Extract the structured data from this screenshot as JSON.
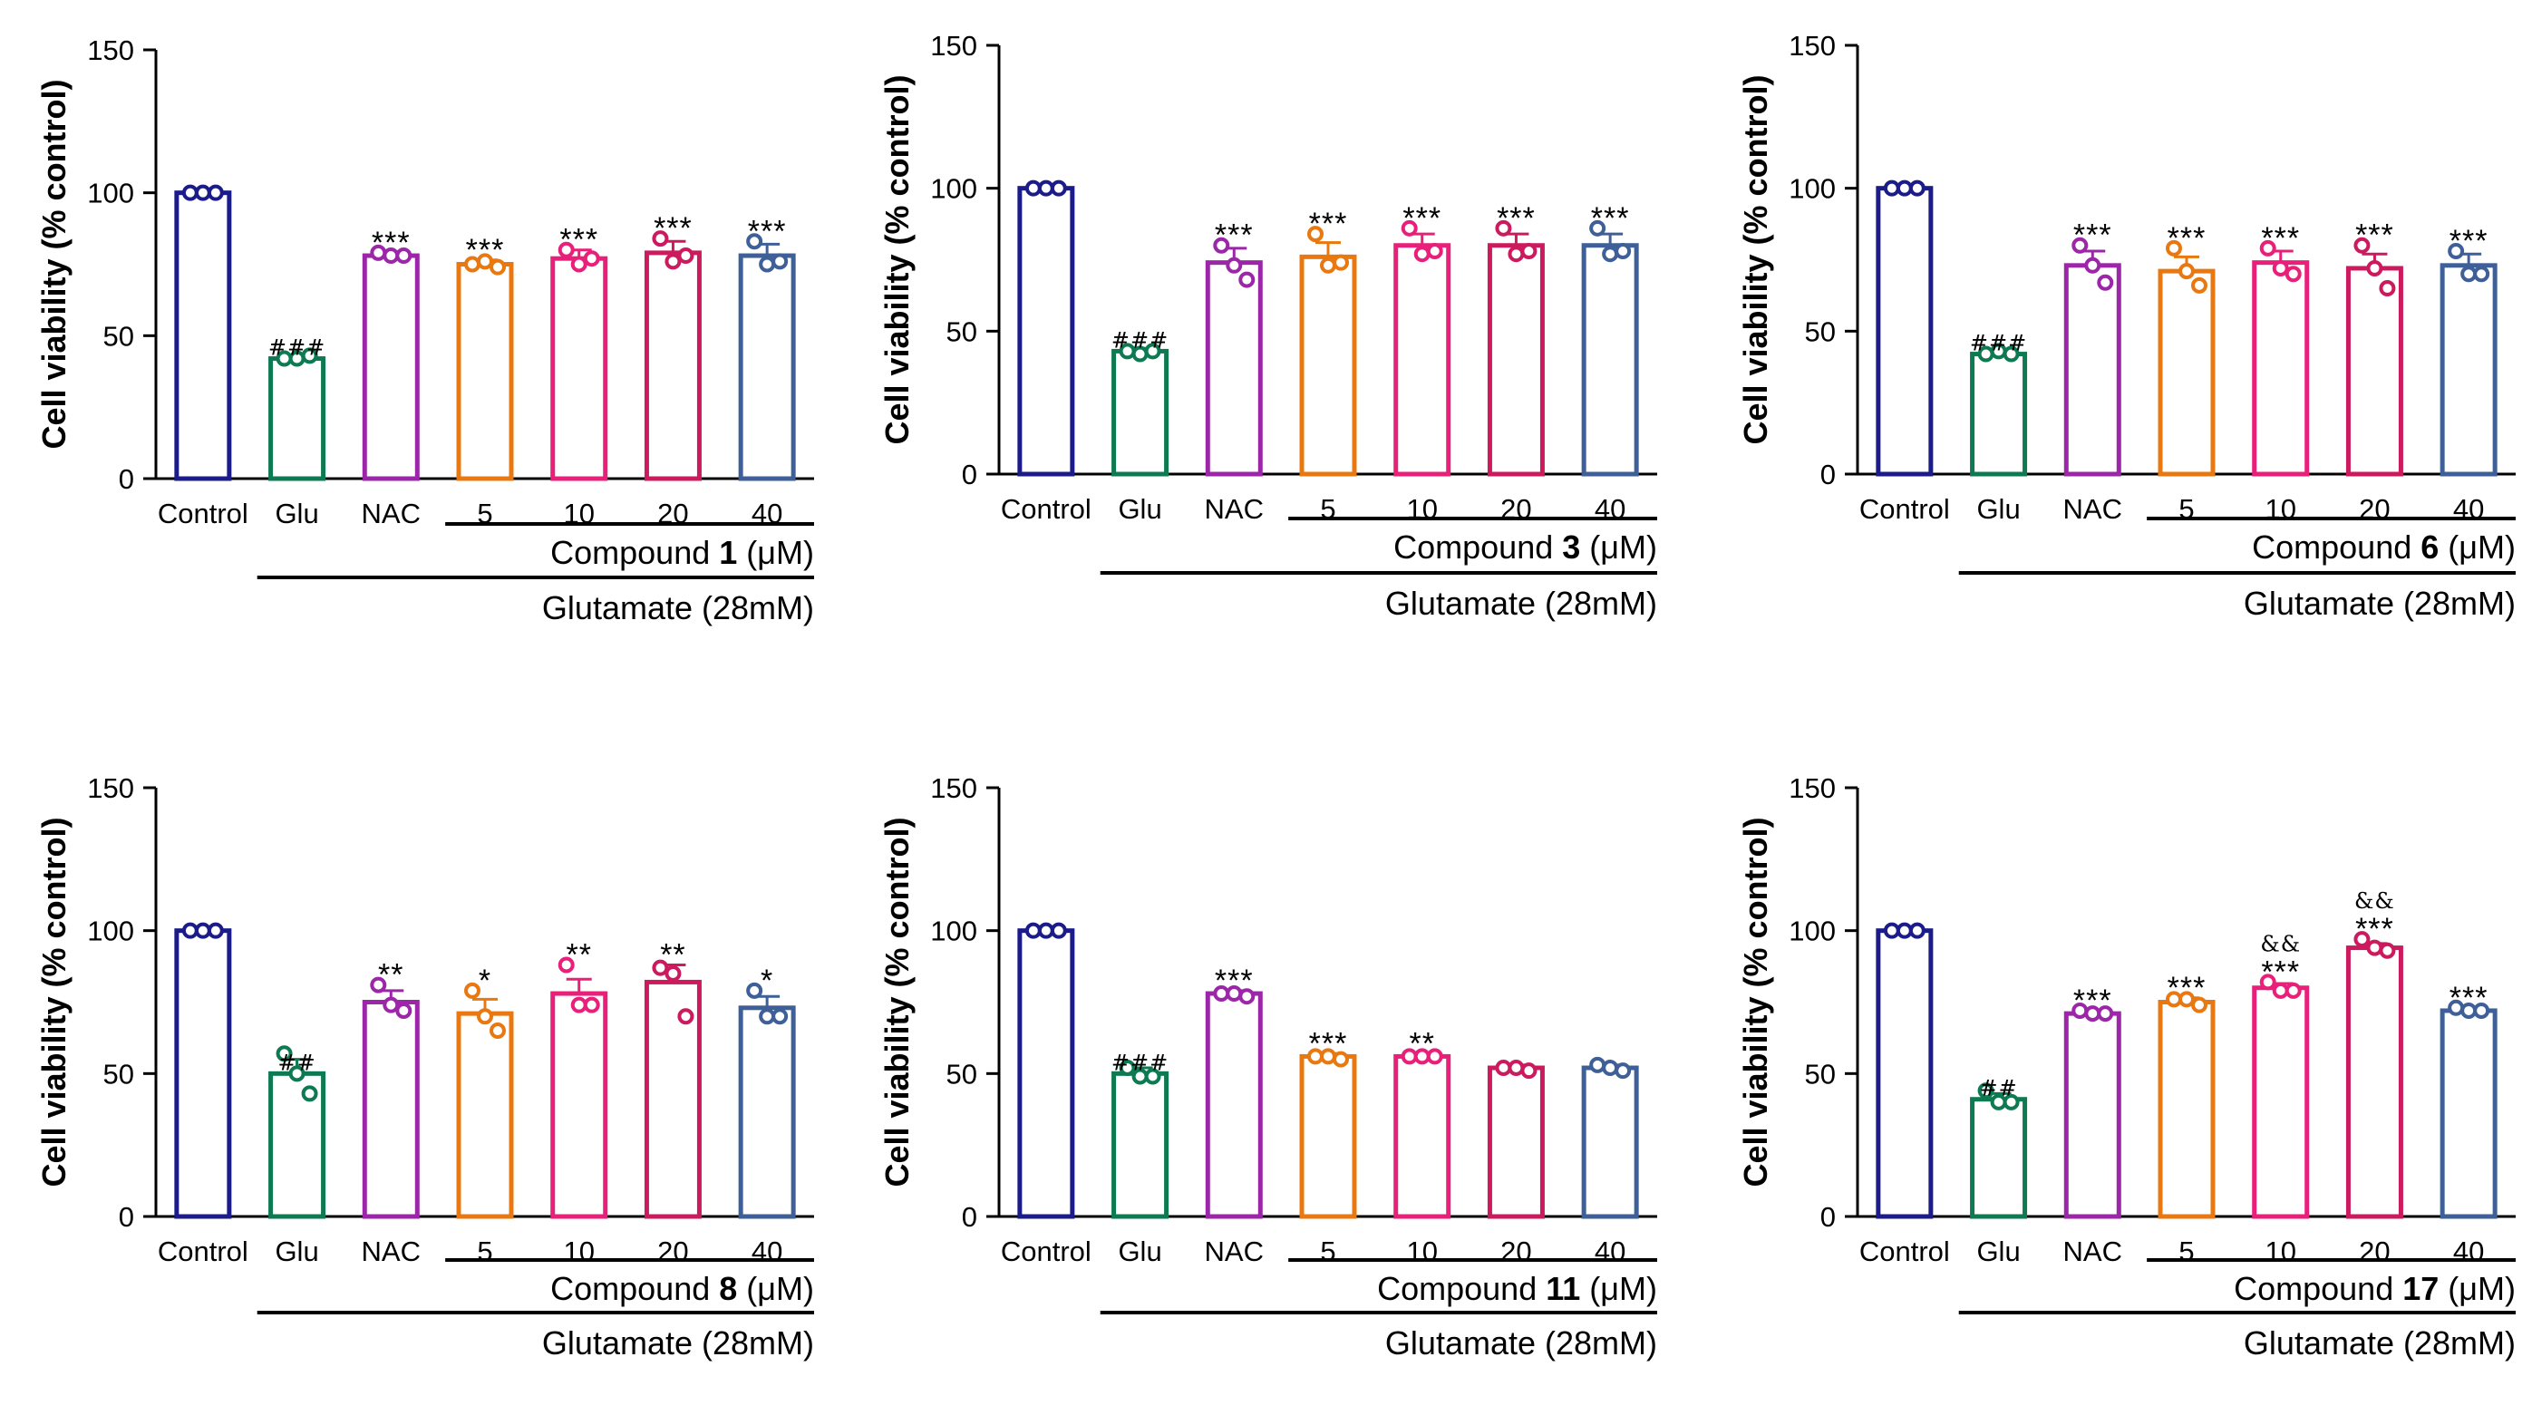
{
  "colors": {
    "Control": "#1b1b8a",
    "Glu": "#0e7a52",
    "NAC": "#9b27a8",
    "5": "#e8780f",
    "10": "#e8207a",
    "20": "#cc1a5e",
    "40": "#3e5f98",
    "axis": "#000000"
  },
  "chart_data": [
    {
      "type": "bar",
      "ylabel": "Cell viability (% control)",
      "ylim": [
        0,
        150
      ],
      "yticks": [
        "0",
        "50",
        "100",
        "150"
      ],
      "categories": [
        "Control",
        "Glu",
        "NAC",
        "5",
        "10",
        "20",
        "40"
      ],
      "values": [
        100,
        42,
        78,
        75,
        77,
        79,
        78
      ],
      "errors": [
        0.5,
        1,
        1,
        1.5,
        3,
        4,
        4
      ],
      "points": [
        [
          100,
          100,
          100
        ],
        [
          42,
          42,
          43
        ],
        [
          79,
          78,
          78
        ],
        [
          75,
          76,
          74
        ],
        [
          80,
          75,
          77
        ],
        [
          84,
          76,
          78
        ],
        [
          83,
          75,
          76
        ]
      ],
      "sig": [
        "",
        "###",
        "***",
        "***",
        "***",
        "***",
        "***"
      ],
      "sig2": [
        "",
        "",
        "",
        "",
        "",
        "",
        ""
      ],
      "compound_prefix": "Compound ",
      "compound_id": "1",
      "compound_unit": " (μM)",
      "treatment_label": "Glutamate (28mM)"
    },
    {
      "type": "bar",
      "ylabel": "Cell viability (% control)",
      "ylim": [
        0,
        150
      ],
      "yticks": [
        "0",
        "50",
        "100",
        "150"
      ],
      "categories": [
        "Control",
        "Glu",
        "NAC",
        "5",
        "10",
        "20",
        "40"
      ],
      "values": [
        100,
        43,
        74,
        76,
        80,
        80,
        80
      ],
      "errors": [
        0.5,
        1,
        5,
        5,
        4,
        4,
        4
      ],
      "points": [
        [
          100,
          100,
          100
        ],
        [
          43,
          42,
          43
        ],
        [
          80,
          73,
          68
        ],
        [
          84,
          73,
          74
        ],
        [
          86,
          77,
          78
        ],
        [
          86,
          77,
          78
        ],
        [
          86,
          77,
          78
        ]
      ],
      "sig": [
        "",
        "###",
        "***",
        "***",
        "***",
        "***",
        "***"
      ],
      "sig2": [
        "",
        "",
        "",
        "",
        "",
        "",
        ""
      ],
      "compound_prefix": "Compound ",
      "compound_id": "3",
      "compound_unit": " (μM)",
      "treatment_label": "Glutamate (28mM)"
    },
    {
      "type": "bar",
      "ylabel": "Cell viability (% control)",
      "ylim": [
        0,
        150
      ],
      "yticks": [
        "0",
        "50",
        "100",
        "150"
      ],
      "categories": [
        "Control",
        "Glu",
        "NAC",
        "5",
        "10",
        "20",
        "40"
      ],
      "values": [
        100,
        42,
        73,
        71,
        74,
        72,
        73
      ],
      "errors": [
        0.5,
        1,
        5,
        5,
        4,
        5,
        4
      ],
      "points": [
        [
          100,
          100,
          100
        ],
        [
          42,
          43,
          42
        ],
        [
          80,
          73,
          67
        ],
        [
          79,
          71,
          66
        ],
        [
          79,
          72,
          70
        ],
        [
          80,
          72,
          65
        ],
        [
          78,
          70,
          70
        ]
      ],
      "sig": [
        "",
        "###",
        "***",
        "***",
        "***",
        "***",
        "***"
      ],
      "sig2": [
        "",
        "",
        "",
        "",
        "",
        "",
        ""
      ],
      "compound_prefix": "Compound ",
      "compound_id": "6",
      "compound_unit": " (μM)",
      "treatment_label": "Glutamate (28mM)"
    },
    {
      "type": "bar",
      "ylabel": "Cell viability (% control)",
      "ylim": [
        0,
        150
      ],
      "yticks": [
        "0",
        "50",
        "100",
        "150"
      ],
      "categories": [
        "Control",
        "Glu",
        "NAC",
        "5",
        "10",
        "20",
        "40"
      ],
      "values": [
        100,
        50,
        75,
        71,
        78,
        82,
        73
      ],
      "errors": [
        0.5,
        5,
        4,
        5,
        5,
        6,
        4
      ],
      "points": [
        [
          100,
          100,
          100
        ],
        [
          57,
          50,
          43
        ],
        [
          81,
          74,
          72
        ],
        [
          79,
          70,
          65
        ],
        [
          88,
          74,
          74
        ],
        [
          87,
          85,
          70
        ],
        [
          79,
          70,
          70
        ]
      ],
      "sig": [
        "",
        "##",
        "**",
        "*",
        "**",
        "**",
        "*"
      ],
      "sig2": [
        "",
        "",
        "",
        "",
        "",
        "",
        ""
      ],
      "compound_prefix": "Compound ",
      "compound_id": "8",
      "compound_unit": " (μM)",
      "treatment_label": "Glutamate (28mM)"
    },
    {
      "type": "bar",
      "ylabel": "Cell viability (% control)",
      "ylim": [
        0,
        150
      ],
      "yticks": [
        "0",
        "50",
        "100",
        "150"
      ],
      "categories": [
        "Control",
        "Glu",
        "NAC",
        "5",
        "10",
        "20",
        "40"
      ],
      "values": [
        100,
        50,
        78,
        56,
        56,
        52,
        52
      ],
      "errors": [
        0.5,
        2,
        1,
        1,
        1,
        1,
        1
      ],
      "points": [
        [
          100,
          100,
          100
        ],
        [
          52,
          49,
          49
        ],
        [
          78,
          78,
          77
        ],
        [
          56,
          56,
          55
        ],
        [
          56,
          56,
          56
        ],
        [
          52,
          52,
          51
        ],
        [
          53,
          52,
          51
        ]
      ],
      "sig": [
        "",
        "###",
        "***",
        "***",
        "**",
        "",
        ""
      ],
      "sig2": [
        "",
        "",
        "",
        "",
        "",
        "",
        ""
      ],
      "compound_prefix": "Compound ",
      "compound_id": "11",
      "compound_unit": " (μM)",
      "treatment_label": "Glutamate (28mM)"
    },
    {
      "type": "bar",
      "ylabel": "Cell viability (% control)",
      "ylim": [
        0,
        150
      ],
      "yticks": [
        "0",
        "50",
        "100",
        "150"
      ],
      "categories": [
        "Control",
        "Glu",
        "NAC",
        "5",
        "10",
        "20",
        "40"
      ],
      "values": [
        100,
        41,
        71,
        75,
        80,
        94,
        72
      ],
      "errors": [
        0.5,
        2,
        1,
        1.5,
        1.5,
        1.5,
        1
      ],
      "points": [
        [
          100,
          100,
          100
        ],
        [
          44,
          40,
          40
        ],
        [
          72,
          71,
          71
        ],
        [
          76,
          76,
          74
        ],
        [
          82,
          79,
          79
        ],
        [
          97,
          94,
          93
        ],
        [
          73,
          72,
          72
        ]
      ],
      "sig": [
        "",
        "##",
        "***",
        "***",
        "***",
        "***",
        "***"
      ],
      "sig2": [
        "",
        "",
        "",
        "",
        "&&",
        "&&",
        ""
      ],
      "compound_prefix": "Compound ",
      "compound_id": "17",
      "compound_unit": " (μM)",
      "treatment_label": "Glutamate (28mM)"
    }
  ]
}
